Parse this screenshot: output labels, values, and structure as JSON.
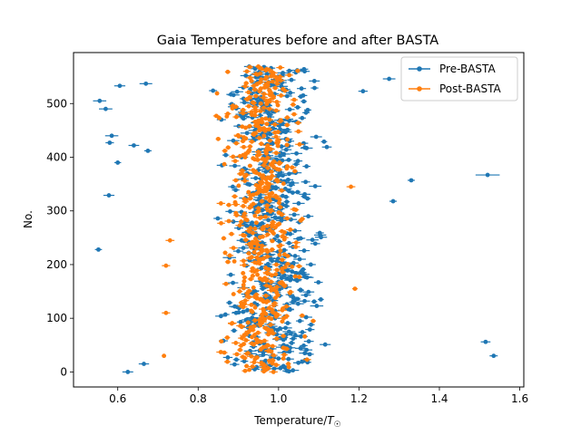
{
  "chart_data": {
    "type": "scatter",
    "title": "Gaia Temperatures before and after BASTA",
    "xlabel": "Temperature/",
    "xlabel_symbol": "T",
    "xlabel_subscript": "☉",
    "ylabel": "No.",
    "xlim": [
      0.49,
      1.61
    ],
    "ylim": [
      -28,
      595
    ],
    "xticks": [
      0.6,
      0.8,
      1.0,
      1.2,
      1.4,
      1.6
    ],
    "xtick_labels": [
      "0.6",
      "0.8",
      "1.0",
      "1.2",
      "1.4",
      "1.6"
    ],
    "yticks": [
      0,
      100,
      200,
      300,
      400,
      500
    ],
    "ytick_labels": [
      "0",
      "100",
      "200",
      "300",
      "400",
      "500"
    ],
    "grid": false,
    "legend_position": "top-right",
    "n_points": 570,
    "series": [
      {
        "name": "Pre-BASTA",
        "color": "#1f77b4",
        "marker": "dot with horizontal error bar",
        "x_center": 0.98,
        "x_spread": 0.09,
        "typical_error": 0.012,
        "outliers": [
          {
            "y": 505,
            "x": 0.555
          },
          {
            "y": 490,
            "x": 0.57
          },
          {
            "y": 533,
            "x": 0.605
          },
          {
            "y": 427,
            "x": 0.58
          },
          {
            "y": 440,
            "x": 0.585
          },
          {
            "y": 390,
            "x": 0.6
          },
          {
            "y": 329,
            "x": 0.578
          },
          {
            "y": 228,
            "x": 0.552
          },
          {
            "y": 0,
            "x": 0.625
          },
          {
            "y": 15,
            "x": 0.665
          },
          {
            "y": 537,
            "x": 0.67
          },
          {
            "y": 422,
            "x": 0.64
          },
          {
            "y": 412,
            "x": 0.675
          },
          {
            "y": 546,
            "x": 1.275
          },
          {
            "y": 523,
            "x": 1.21
          },
          {
            "y": 357,
            "x": 1.33
          },
          {
            "y": 318,
            "x": 1.285
          },
          {
            "y": 367,
            "x": 1.52,
            "error": 0.03
          },
          {
            "y": 56,
            "x": 1.515
          },
          {
            "y": 30,
            "x": 1.535
          }
        ]
      },
      {
        "name": "Post-BASTA",
        "color": "#ff7f0e",
        "marker": "dot with horizontal error bar",
        "x_center": 0.96,
        "x_spread": 0.07,
        "typical_error": 0.008,
        "outliers": [
          {
            "y": 198,
            "x": 0.72
          },
          {
            "y": 245,
            "x": 0.73
          },
          {
            "y": 110,
            "x": 0.72
          },
          {
            "y": 345,
            "x": 1.18
          },
          {
            "y": 155,
            "x": 1.19
          },
          {
            "y": 30,
            "x": 0.715
          }
        ]
      }
    ]
  }
}
